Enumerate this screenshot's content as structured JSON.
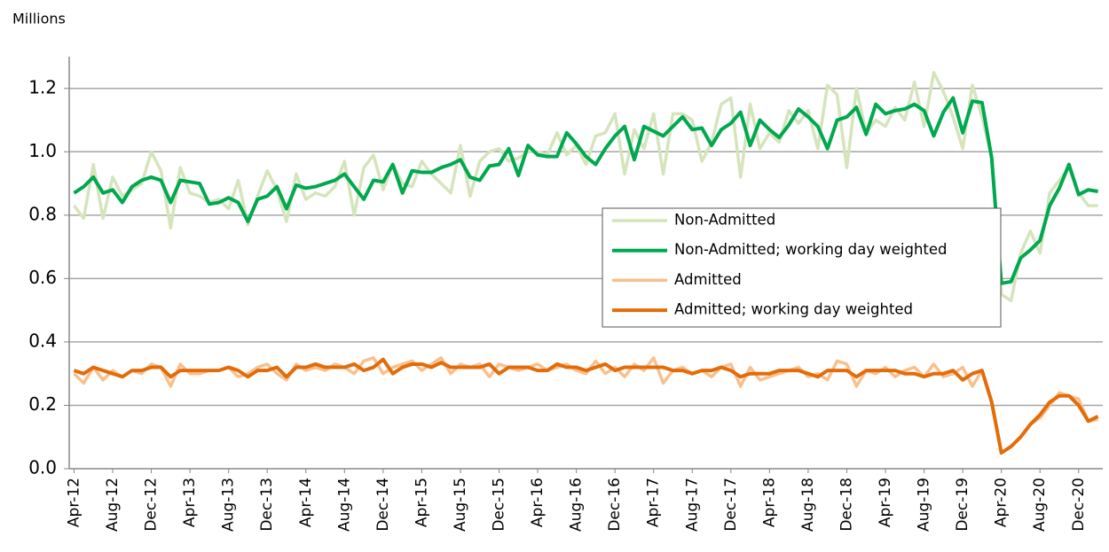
{
  "chart_data": {
    "type": "line",
    "ylabel": "Millions",
    "ylim": [
      0,
      1.3
    ],
    "yticks": [
      {
        "value": 0,
        "label": "0.0"
      },
      {
        "value": 0.2,
        "label": "0.2"
      },
      {
        "value": 0.4,
        "label": "0.4"
      },
      {
        "value": 0.6,
        "label": "0.6"
      },
      {
        "value": 0.8,
        "label": "0.8"
      },
      {
        "value": 1,
        "label": "1.0"
      },
      {
        "value": 1.2,
        "label": "1.2"
      }
    ],
    "grid": true,
    "categories": [
      "Apr-12",
      null,
      null,
      null,
      "Aug-12",
      null,
      null,
      null,
      "Dec-12",
      null,
      null,
      null,
      "Apr-13",
      null,
      null,
      null,
      "Aug-13",
      null,
      null,
      null,
      "Dec-13",
      null,
      null,
      null,
      "Apr-14",
      null,
      null,
      null,
      "Aug-14",
      null,
      null,
      null,
      "Dec-14",
      null,
      null,
      null,
      "Apr-15",
      null,
      null,
      null,
      "Aug-15",
      null,
      null,
      null,
      "Dec-15",
      null,
      null,
      null,
      "Apr-16",
      null,
      null,
      null,
      "Aug-16",
      null,
      null,
      null,
      "Dec-16",
      null,
      null,
      null,
      "Apr-17",
      null,
      null,
      null,
      "Aug-17",
      null,
      null,
      null,
      "Dec-17",
      null,
      null,
      null,
      "Apr-18",
      null,
      null,
      null,
      "Aug-18",
      null,
      null,
      null,
      "Dec-18",
      null,
      null,
      null,
      "Apr-19",
      null,
      null,
      null,
      "Aug-19",
      null,
      null,
      null,
      "Dec-19",
      null,
      null,
      null,
      "Apr-20",
      null,
      null,
      null,
      "Aug-20",
      null,
      null,
      null,
      "Dec-20",
      null,
      null
    ],
    "series": [
      {
        "name": "Non-Admitted",
        "color": "#d6e4bc",
        "values": [
          0.83,
          0.79,
          0.96,
          0.79,
          0.92,
          0.86,
          0.88,
          0.9,
          1.0,
          0.94,
          0.76,
          0.95,
          0.87,
          0.86,
          0.84,
          0.85,
          0.82,
          0.91,
          0.77,
          0.86,
          0.94,
          0.88,
          0.78,
          0.93,
          0.85,
          0.87,
          0.86,
          0.89,
          0.97,
          0.8,
          0.95,
          0.99,
          0.88,
          0.96,
          0.9,
          0.89,
          0.97,
          0.93,
          0.9,
          0.87,
          1.02,
          0.86,
          0.97,
          1.0,
          1.01,
          0.97,
          0.98,
          1.0,
          1.0,
          0.99,
          1.06,
          0.99,
          1.02,
          0.96,
          1.05,
          1.06,
          1.12,
          0.93,
          1.07,
          1.01,
          1.12,
          0.93,
          1.12,
          1.12,
          1.1,
          0.97,
          1.03,
          1.15,
          1.17,
          0.92,
          1.15,
          1.01,
          1.06,
          1.03,
          1.13,
          1.09,
          1.13,
          1.01,
          1.21,
          1.18,
          0.95,
          1.2,
          1.06,
          1.1,
          1.08,
          1.14,
          1.1,
          1.22,
          1.08,
          1.25,
          1.19,
          1.11,
          1.01,
          1.21,
          1.11,
          0.98,
          0.55,
          0.53,
          0.68,
          0.75,
          0.68,
          0.87,
          0.91,
          0.95,
          0.87,
          0.83,
          0.83
        ]
      },
      {
        "name": "Non-Admitted; working day weighted",
        "color": "#00a84f",
        "values": [
          0.87,
          0.89,
          0.92,
          0.87,
          0.88,
          0.84,
          0.89,
          0.91,
          0.92,
          0.91,
          0.84,
          0.91,
          0.905,
          0.9,
          0.835,
          0.84,
          0.855,
          0.84,
          0.78,
          0.85,
          0.86,
          0.89,
          0.82,
          0.895,
          0.885,
          0.89,
          0.9,
          0.91,
          0.93,
          0.89,
          0.85,
          0.91,
          0.905,
          0.96,
          0.87,
          0.94,
          0.935,
          0.935,
          0.95,
          0.96,
          0.975,
          0.92,
          0.91,
          0.955,
          0.96,
          1.01,
          0.925,
          1.02,
          0.99,
          0.985,
          0.985,
          1.06,
          1.025,
          0.985,
          0.96,
          1.01,
          1.05,
          1.08,
          0.975,
          1.08,
          1.065,
          1.05,
          1.08,
          1.11,
          1.07,
          1.075,
          1.02,
          1.07,
          1.09,
          1.125,
          1.02,
          1.1,
          1.07,
          1.045,
          1.085,
          1.135,
          1.11,
          1.08,
          1.01,
          1.1,
          1.11,
          1.14,
          1.055,
          1.15,
          1.12,
          1.13,
          1.135,
          1.15,
          1.13,
          1.05,
          1.125,
          1.17,
          1.06,
          1.16,
          1.155,
          0.98,
          0.585,
          0.59,
          0.665,
          0.69,
          0.72,
          0.83,
          0.885,
          0.96,
          0.865,
          0.88,
          0.875
        ]
      },
      {
        "name": "Admitted",
        "color": "#f9c08e",
        "values": [
          0.3,
          0.27,
          0.32,
          0.28,
          0.31,
          0.29,
          0.31,
          0.3,
          0.33,
          0.32,
          0.26,
          0.33,
          0.3,
          0.3,
          0.31,
          0.31,
          0.32,
          0.29,
          0.3,
          0.32,
          0.33,
          0.3,
          0.28,
          0.33,
          0.31,
          0.32,
          0.31,
          0.33,
          0.32,
          0.3,
          0.34,
          0.35,
          0.3,
          0.32,
          0.33,
          0.34,
          0.31,
          0.33,
          0.35,
          0.3,
          0.33,
          0.32,
          0.33,
          0.29,
          0.33,
          0.32,
          0.31,
          0.32,
          0.33,
          0.31,
          0.32,
          0.33,
          0.31,
          0.3,
          0.34,
          0.3,
          0.32,
          0.29,
          0.33,
          0.31,
          0.35,
          0.27,
          0.31,
          0.32,
          0.3,
          0.31,
          0.29,
          0.32,
          0.33,
          0.26,
          0.32,
          0.28,
          0.29,
          0.3,
          0.31,
          0.32,
          0.29,
          0.3,
          0.28,
          0.34,
          0.33,
          0.26,
          0.31,
          0.3,
          0.32,
          0.29,
          0.31,
          0.32,
          0.29,
          0.33,
          0.29,
          0.3,
          0.32,
          0.26,
          0.31,
          0.21,
          0.05,
          0.07,
          0.1,
          0.14,
          0.16,
          0.2,
          0.24,
          0.23,
          0.22,
          0.15,
          0.155
        ]
      },
      {
        "name": "Admitted; working day weighted",
        "color": "#e36c0a",
        "values": [
          0.31,
          0.3,
          0.32,
          0.31,
          0.3,
          0.29,
          0.31,
          0.31,
          0.32,
          0.32,
          0.29,
          0.31,
          0.31,
          0.31,
          0.31,
          0.31,
          0.32,
          0.31,
          0.29,
          0.31,
          0.31,
          0.32,
          0.29,
          0.32,
          0.32,
          0.33,
          0.32,
          0.32,
          0.32,
          0.33,
          0.31,
          0.32,
          0.345,
          0.3,
          0.32,
          0.33,
          0.33,
          0.32,
          0.335,
          0.32,
          0.32,
          0.32,
          0.32,
          0.33,
          0.3,
          0.32,
          0.32,
          0.32,
          0.31,
          0.31,
          0.33,
          0.32,
          0.32,
          0.31,
          0.32,
          0.33,
          0.31,
          0.32,
          0.32,
          0.32,
          0.32,
          0.32,
          0.31,
          0.31,
          0.3,
          0.31,
          0.31,
          0.32,
          0.31,
          0.29,
          0.3,
          0.3,
          0.3,
          0.31,
          0.31,
          0.31,
          0.3,
          0.29,
          0.31,
          0.31,
          0.31,
          0.29,
          0.31,
          0.31,
          0.31,
          0.31,
          0.3,
          0.3,
          0.29,
          0.3,
          0.3,
          0.31,
          0.28,
          0.3,
          0.31,
          0.21,
          0.05,
          0.07,
          0.1,
          0.14,
          0.17,
          0.21,
          0.23,
          0.23,
          0.2,
          0.15,
          0.165
        ]
      }
    ]
  }
}
